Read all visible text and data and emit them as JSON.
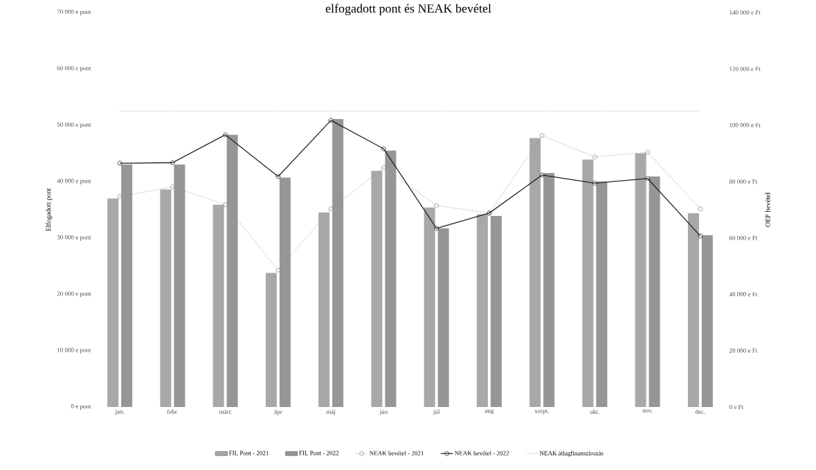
{
  "chart_data": {
    "type": "bar",
    "title": "elfogadott pont és NEAK bevétel",
    "ylabel": "Elfogadott pont",
    "y2label": "OEP bevétel",
    "categories": [
      "jan.",
      "febr.",
      "márc",
      "ápr",
      "máj",
      "jún",
      "júl",
      "aug",
      "szept.",
      "okt.",
      "nov.",
      "dec."
    ],
    "series": [
      {
        "name": "FIL Pont - 2021",
        "color": "#a8a8a8",
        "values": [
          37000,
          38600,
          35900,
          23800,
          34500,
          41900,
          35400,
          34200,
          47700,
          43900,
          45000,
          34400
        ]
      },
      {
        "name": "FIL Pont - 2022",
        "color": "#969696",
        "values": [
          43000,
          43000,
          48300,
          40700,
          51100,
          45500,
          31700,
          33900,
          41500,
          40000,
          40900,
          30500
        ]
      },
      {
        "name": "NEAK bevétel - 2021",
        "type": "line",
        "axis": "y2",
        "color": "#8c8c8c",
        "marker": "circle",
        "line_style": "dotted",
        "values": [
          74700,
          78100,
          71800,
          48600,
          70300,
          85000,
          71500,
          68800,
          96300,
          88700,
          90400,
          70300
        ]
      },
      {
        "name": "NEAK bevétel - 2022",
        "type": "line",
        "axis": "y2",
        "color": "#222222",
        "marker": "circle",
        "line_style": "solid",
        "values": [
          86500,
          86700,
          96600,
          81800,
          101700,
          91600,
          63400,
          68800,
          82300,
          79400,
          81100,
          60700
        ]
      },
      {
        "name": "NEAK átlagfinanszírozás",
        "type": "line",
        "axis": "y2",
        "color": "#a0a0a0",
        "marker": "none",
        "line_style": "dotted",
        "values": [
          105000,
          105000,
          105000,
          105000,
          105000,
          105000,
          105000,
          105000,
          105000,
          105000,
          105000,
          105000
        ]
      }
    ],
    "ylim": [
      0,
      70000
    ],
    "yticks": [
      {
        "value": 0,
        "label": "0 e pont"
      },
      {
        "value": 10000,
        "label": "10 000 e pont"
      },
      {
        "value": 20000,
        "label": "20 000 e pont"
      },
      {
        "value": 30000,
        "label": "30 000 e pont"
      },
      {
        "value": 40000,
        "label": "40 000 e pont"
      },
      {
        "value": 50000,
        "label": "50 000 e pont"
      },
      {
        "value": 60000,
        "label": "60 000 e pont"
      },
      {
        "value": 70000,
        "label": "70 000 e pont"
      }
    ],
    "y2lim": [
      0,
      140000
    ],
    "y2ticks": [
      {
        "value": 0,
        "label": "0 e Ft"
      },
      {
        "value": 20000,
        "label": "20 000 e Ft"
      },
      {
        "value": 40000,
        "label": "40 000 e Ft"
      },
      {
        "value": 60000,
        "label": "60 000 e Ft"
      },
      {
        "value": 80000,
        "label": "80 000 e Ft"
      },
      {
        "value": 100000,
        "label": "100 000 e Ft"
      },
      {
        "value": 120000,
        "label": "120 000 e Ft"
      },
      {
        "value": 140000,
        "label": "140 000 e Ft"
      }
    ],
    "legend": "bottom"
  }
}
